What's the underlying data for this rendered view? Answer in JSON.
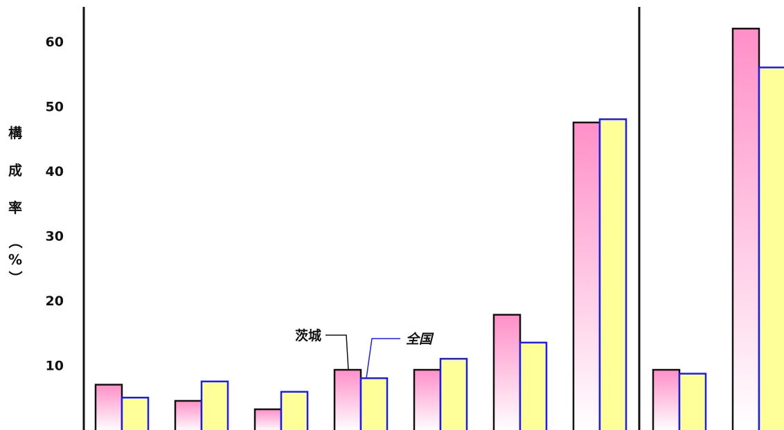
{
  "chart_data": {
    "type": "bar",
    "ylabel": "構成率（%）",
    "yticks": [
      10,
      20,
      30,
      40,
      50,
      60
    ],
    "ylim": [
      0,
      62
    ],
    "group_count": 9,
    "separator_after_group": 7,
    "series": [
      {
        "name": "茨城",
        "values": [
          7.0,
          4.5,
          3.2,
          9.3,
          9.3,
          17.8,
          47.5,
          9.3,
          62.0
        ],
        "fill_top": "#FF8FC8",
        "fill_bottom": "#FFFFFF",
        "stroke": "#111111"
      },
      {
        "name": "全国",
        "values": [
          5.0,
          7.5,
          5.9,
          8.0,
          11.0,
          13.5,
          48.0,
          8.7,
          56.0
        ],
        "fill": "#FFFF99",
        "stroke": "#1A1AFF"
      }
    ],
    "annotations": [
      {
        "label": "茨城",
        "series": 0,
        "group": 3
      },
      {
        "label": "全国",
        "series": 1,
        "group": 3
      }
    ]
  }
}
